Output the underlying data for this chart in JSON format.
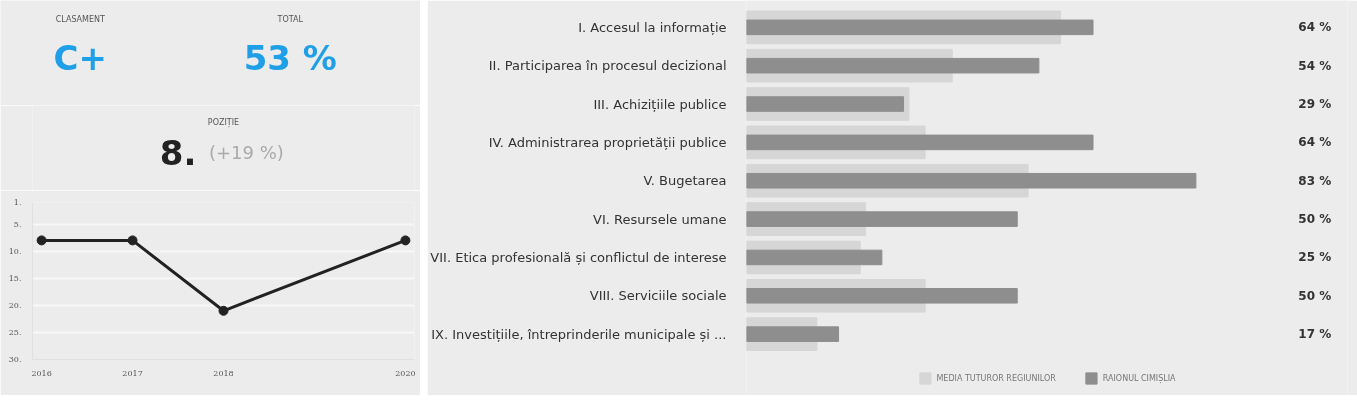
{
  "chart_data": [
    {
      "type": "other",
      "annotations": [
        "CLASAMENT",
        "C+",
        "TOTAL",
        "53 %"
      ]
    },
    {
      "type": "line",
      "title": "POZIȚIE",
      "annotations": [
        "8.",
        "(+19 %)"
      ],
      "x": [
        2016,
        2017,
        2018,
        2020
      ],
      "series": [
        {
          "color": "#222222",
          "values": [
            8,
            8,
            21,
            8
          ]
        }
      ],
      "xlim": [
        2015.9,
        2020.1
      ],
      "xticks": [
        2016,
        2017,
        2018,
        2020
      ],
      "ylim": [
        30,
        1
      ],
      "yticks": [
        {
          "value": 1,
          "label": "1."
        },
        {
          "value": 5,
          "label": "5."
        },
        {
          "value": 10,
          "label": "10."
        },
        {
          "value": 15,
          "label": "15."
        },
        {
          "value": 20,
          "label": "20."
        },
        {
          "value": 25,
          "label": "25."
        },
        {
          "value": 30,
          "label": "30."
        }
      ],
      "marker": "circle",
      "line_style": "solid",
      "grid": "y"
    },
    {
      "type": "bar",
      "orientation": "horizontal",
      "legend": "bottom",
      "categories": [
        "I. Accesul la informație",
        "II. Participarea în procesul decizional",
        "III. Achizițiile publice",
        "IV. Administrarea proprietății publice",
        "V. Bugetarea",
        "VI. Resursele umane",
        "VII. Etica profesională și conflictul de interese",
        "VIII. Serviciile sociale",
        "IX. Investițiile, întreprinderile municipale și ..."
      ],
      "series": [
        {
          "name": "MEDIA TUTUROR REGIUNILOR",
          "color": "#d6d6d6",
          "values": [
            58,
            38,
            30,
            33,
            52,
            22,
            21,
            33,
            13
          ]
        },
        {
          "name": "RAIONUL CIMIȘLIA",
          "color": "#8e8e8e",
          "values": [
            64,
            54,
            29,
            64,
            83,
            50,
            25,
            50,
            17
          ],
          "value_labels": [
            "64 %",
            "54 %",
            "29 %",
            "64 %",
            "83 %",
            "50 %",
            "25 %",
            "50 %",
            "17 %"
          ]
        }
      ]
    }
  ]
}
